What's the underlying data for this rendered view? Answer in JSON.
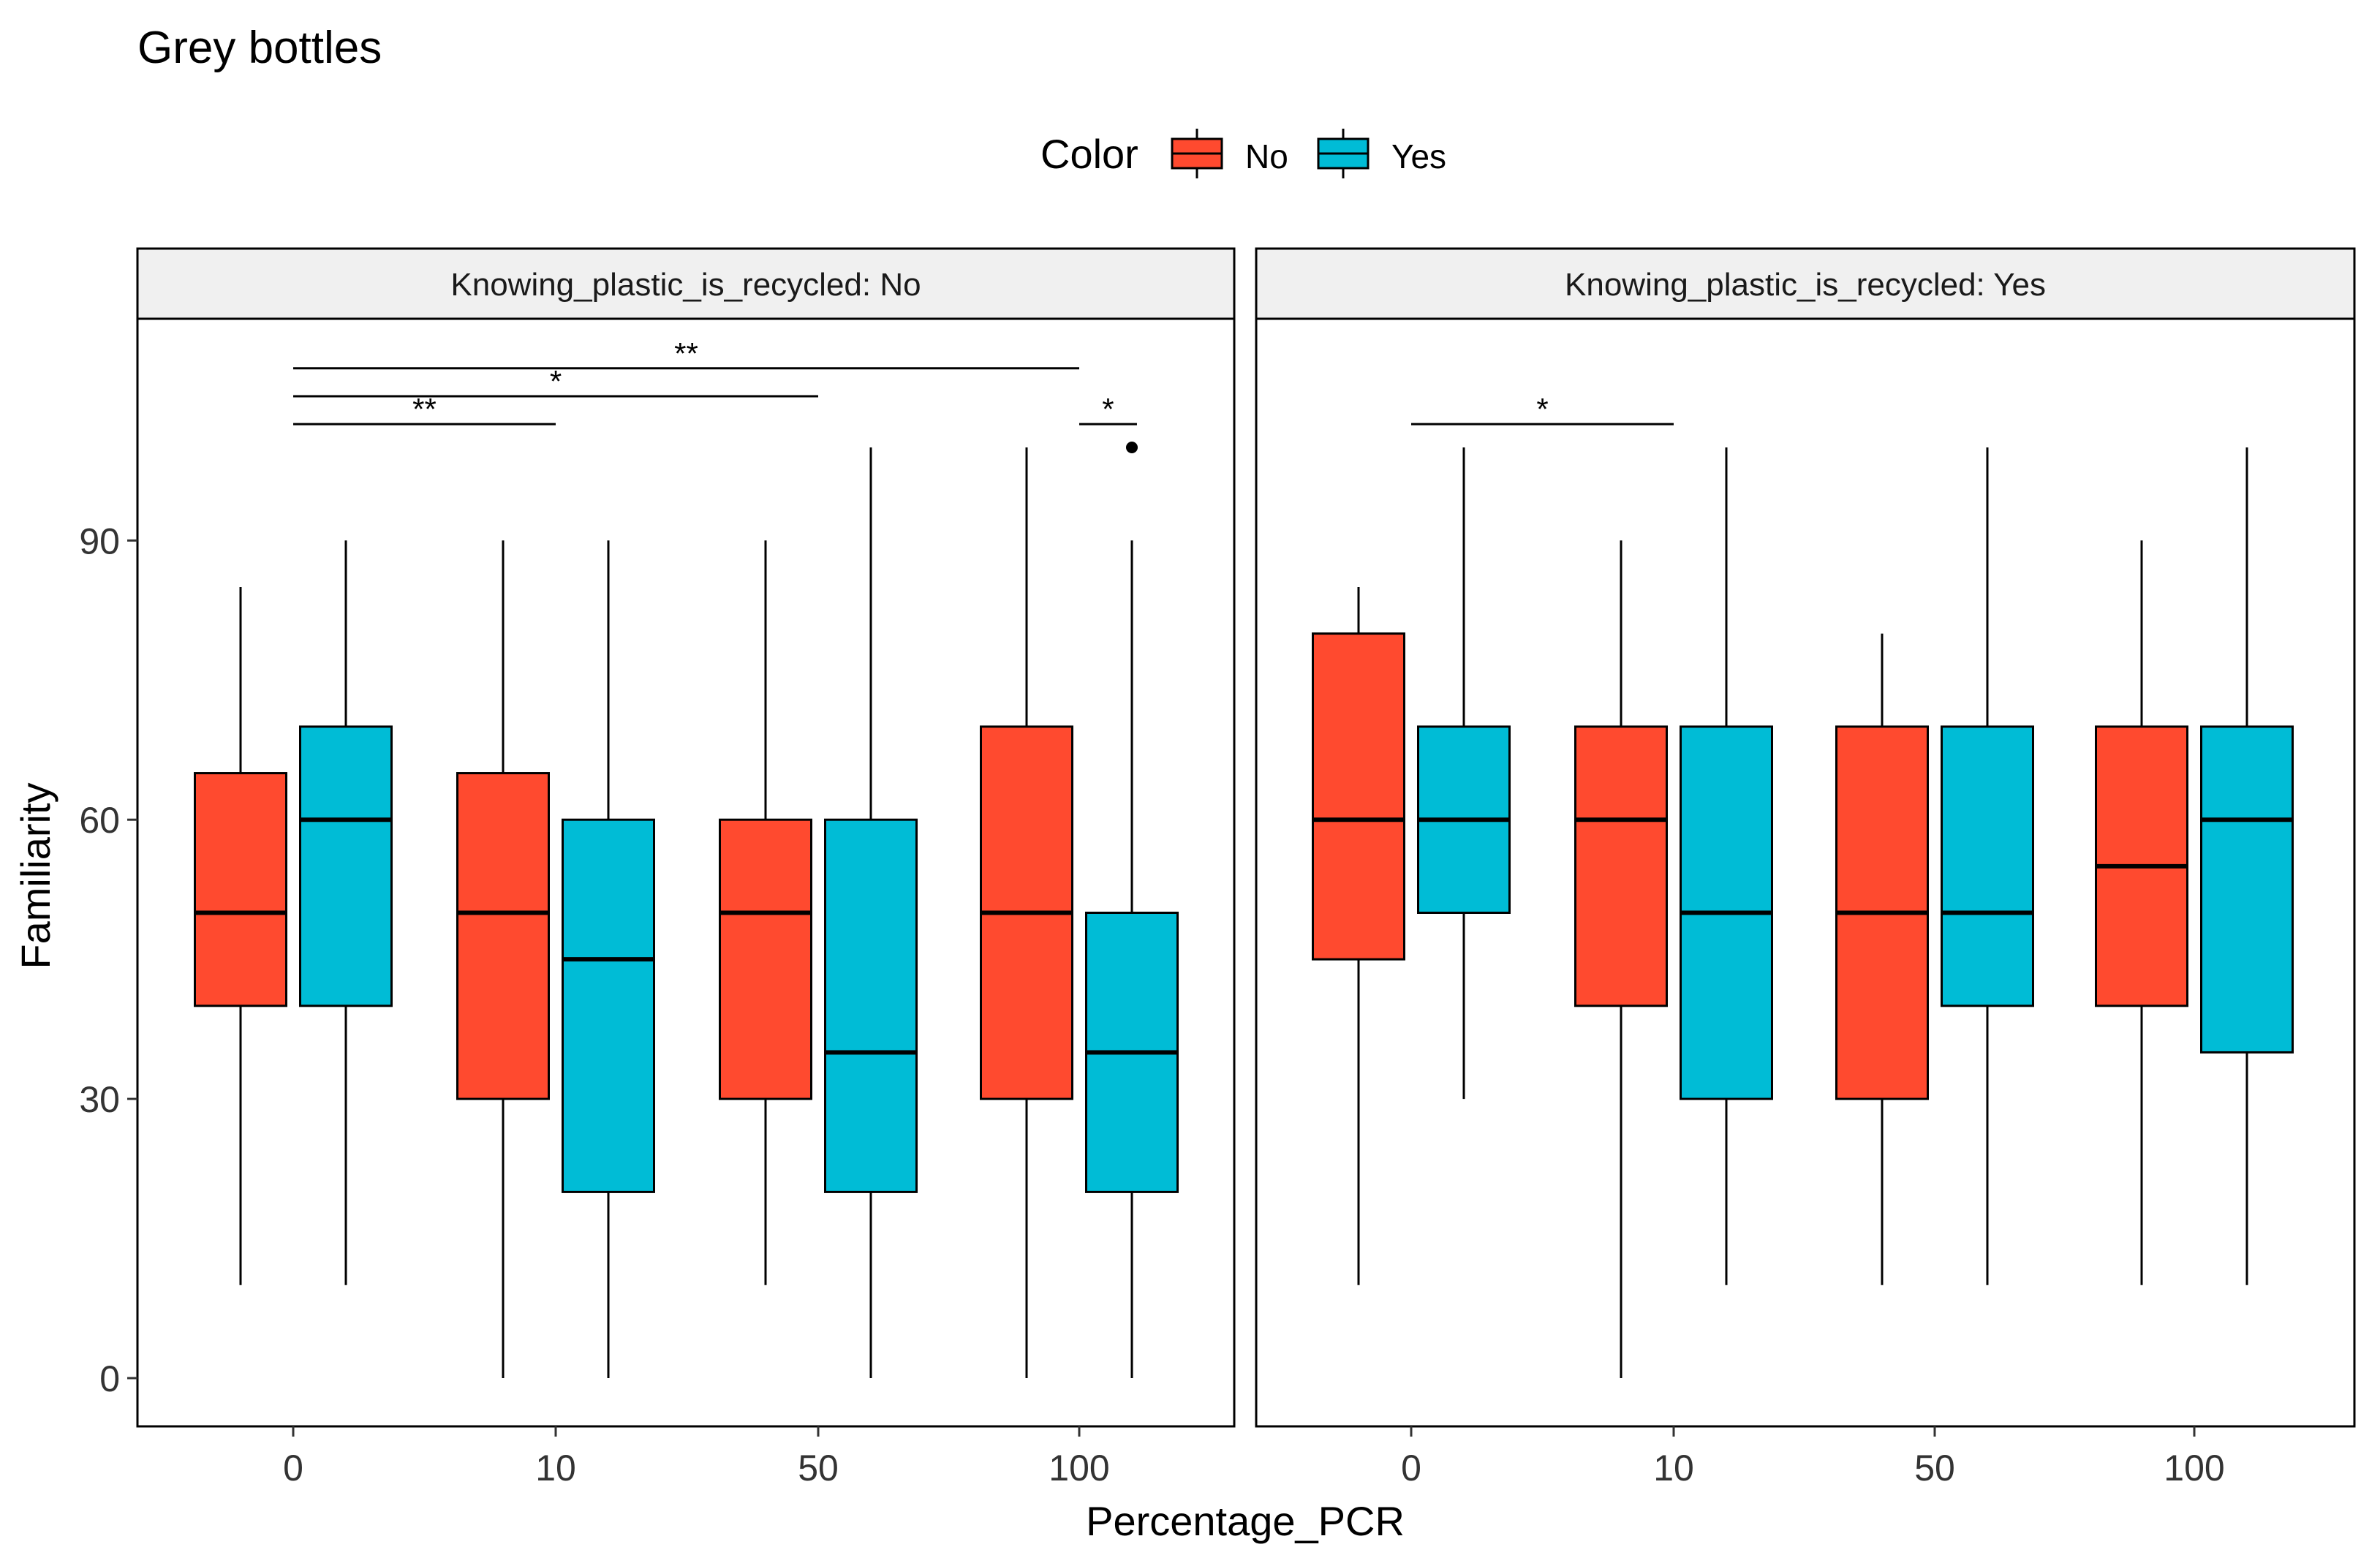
{
  "chart_data": {
    "type": "boxplot",
    "title": "Grey bottles",
    "xlabel": "Percentage_PCR",
    "ylabel": "Familiarity",
    "ylim": [
      -5,
      117
    ],
    "yticks": [
      0,
      30,
      60,
      90
    ],
    "categories": [
      "0",
      "10",
      "50",
      "100"
    ],
    "legend": {
      "title": "Color",
      "position": "top",
      "entries": [
        {
          "label": "No",
          "color": "#FF4A2F"
        },
        {
          "label": "Yes",
          "color": "#00BCD6"
        }
      ]
    },
    "panels": [
      {
        "strip": "Knowing_plastic_is_recycled: No",
        "series": [
          {
            "name": "No",
            "boxes": [
              {
                "min": 10,
                "q1": 40,
                "median": 50,
                "q3": 65,
                "max": 85
              },
              {
                "min": 0,
                "q1": 30,
                "median": 50,
                "q3": 65,
                "max": 90
              },
              {
                "min": 10,
                "q1": 30,
                "median": 50,
                "q3": 60,
                "max": 90
              },
              {
                "min": 0,
                "q1": 30,
                "median": 50,
                "q3": 70,
                "max": 100
              }
            ]
          },
          {
            "name": "Yes",
            "boxes": [
              {
                "min": 10,
                "q1": 40,
                "median": 60,
                "q3": 70,
                "max": 90
              },
              {
                "min": 0,
                "q1": 20,
                "median": 45,
                "q3": 60,
                "max": 90
              },
              {
                "min": 0,
                "q1": 20,
                "median": 35,
                "q3": 60,
                "max": 100
              },
              {
                "min": 0,
                "q1": 20,
                "median": 35,
                "q3": 50,
                "max": 90,
                "outliers": [
                  100
                ]
              }
            ]
          }
        ],
        "significance": [
          {
            "from": 0,
            "to": 3,
            "label": "**",
            "y": 108.5
          },
          {
            "from": 0,
            "to": 2,
            "label": "*",
            "y": 105.5
          },
          {
            "from": 0,
            "to": 1,
            "label": "**",
            "y": 102.5
          },
          {
            "from": 3,
            "to": 3.4,
            "label": "*",
            "y": 102.5
          }
        ]
      },
      {
        "strip": "Knowing_plastic_is_recycled: Yes",
        "series": [
          {
            "name": "No",
            "boxes": [
              {
                "min": 10,
                "q1": 45,
                "median": 60,
                "q3": 80,
                "max": 85
              },
              {
                "min": 0,
                "q1": 40,
                "median": 60,
                "q3": 70,
                "max": 90
              },
              {
                "min": 10,
                "q1": 30,
                "median": 50,
                "q3": 70,
                "max": 80
              },
              {
                "min": 10,
                "q1": 40,
                "median": 55,
                "q3": 70,
                "max": 90
              }
            ]
          },
          {
            "name": "Yes",
            "boxes": [
              {
                "min": 30,
                "q1": 50,
                "median": 60,
                "q3": 70,
                "max": 100
              },
              {
                "min": 10,
                "q1": 30,
                "median": 50,
                "q3": 70,
                "max": 100
              },
              {
                "min": 10,
                "q1": 40,
                "median": 50,
                "q3": 70,
                "max": 100
              },
              {
                "min": 10,
                "q1": 35,
                "median": 60,
                "q3": 70,
                "max": 100
              }
            ]
          }
        ],
        "significance": [
          {
            "from": 0,
            "to": 1,
            "label": "*",
            "y": 102.5
          }
        ]
      }
    ]
  }
}
